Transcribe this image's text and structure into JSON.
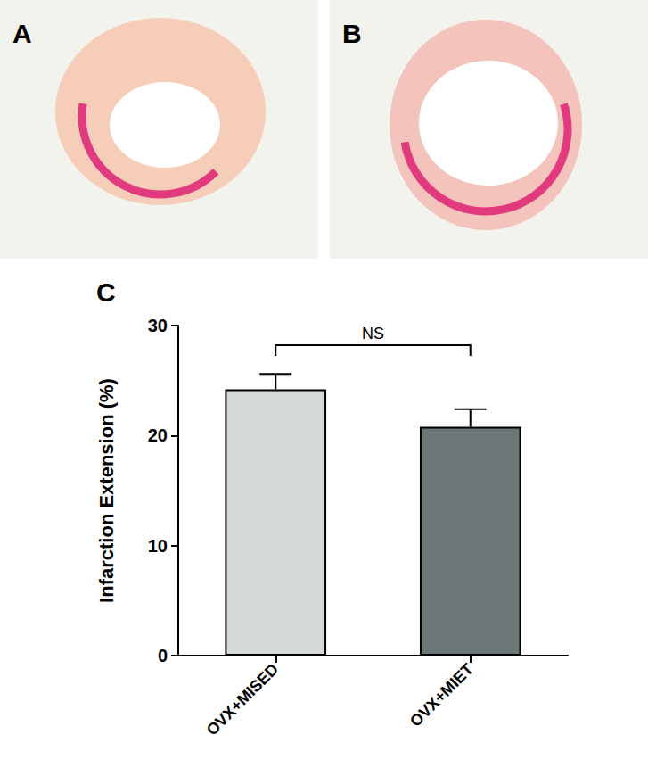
{
  "panel_labels": [
    "A",
    "B",
    "C"
  ],
  "chart_data": {
    "type": "bar",
    "categories": [
      "OVX+MISED",
      "OVX+MIET"
    ],
    "values": [
      24.2,
      20.8
    ],
    "errors": [
      1.4,
      1.6
    ],
    "colors": [
      "#d4d9d6",
      "#6b7676"
    ],
    "y_label": "Infarction Extension (%)",
    "ylim": [
      0,
      30
    ],
    "yticks": [
      0,
      10,
      20,
      30
    ],
    "grid": false,
    "annotations": [
      {
        "text": "NS",
        "between": [
          0,
          1
        ]
      }
    ]
  }
}
